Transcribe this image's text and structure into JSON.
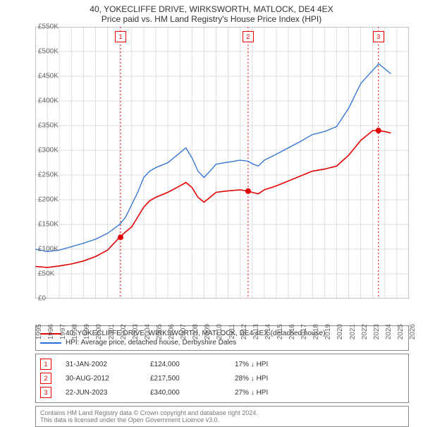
{
  "title": "40, YOKECLIFFE DRIVE, WIRKSWORTH, MATLOCK, DE4 4EX",
  "subtitle": "Price paid vs. HM Land Registry's House Price Index (HPI)",
  "chart": {
    "type": "line",
    "background_color": "#ffffff",
    "grid_color": "#dddddd",
    "axis_color": "#888888",
    "xlim": [
      1995,
      2026
    ],
    "xtick_step": 1,
    "ylim": [
      0,
      550000
    ],
    "ytick_step": 50000,
    "ylabels": [
      "£0",
      "£50K",
      "£100K",
      "£150K",
      "£200K",
      "£250K",
      "£300K",
      "£350K",
      "£400K",
      "£450K",
      "£500K",
      "£550K"
    ],
    "xlabels": [
      "1995",
      "1996",
      "1997",
      "1998",
      "1999",
      "2000",
      "2001",
      "2002",
      "2003",
      "2004",
      "2005",
      "2006",
      "2007",
      "2008",
      "2009",
      "2010",
      "2011",
      "2012",
      "2013",
      "2014",
      "2015",
      "2016",
      "2017",
      "2018",
      "2019",
      "2020",
      "2021",
      "2022",
      "2023",
      "2024",
      "2025",
      "2026"
    ],
    "series": [
      {
        "name": "40, YOKECLIFFE DRIVE, WIRKSWORTH, MATLOCK, DE4 4EX (detached house)",
        "color": "#e30000",
        "width": 1.6,
        "data": [
          [
            1995,
            65000
          ],
          [
            1996,
            63000
          ],
          [
            1997,
            66000
          ],
          [
            1998,
            70000
          ],
          [
            1999,
            76000
          ],
          [
            2000,
            85000
          ],
          [
            2001,
            98000
          ],
          [
            2002,
            124000
          ],
          [
            2002.5,
            135000
          ],
          [
            2003,
            145000
          ],
          [
            2003.5,
            165000
          ],
          [
            2004,
            185000
          ],
          [
            2004.5,
            198000
          ],
          [
            2005,
            205000
          ],
          [
            2006,
            215000
          ],
          [
            2007,
            228000
          ],
          [
            2007.5,
            235000
          ],
          [
            2008,
            225000
          ],
          [
            2008.5,
            205000
          ],
          [
            2009,
            195000
          ],
          [
            2009.5,
            205000
          ],
          [
            2010,
            215000
          ],
          [
            2011,
            218000
          ],
          [
            2012,
            220000
          ],
          [
            2012.66,
            217500
          ],
          [
            2013,
            215000
          ],
          [
            2013.5,
            212000
          ],
          [
            2014,
            220000
          ],
          [
            2015,
            228000
          ],
          [
            2016,
            238000
          ],
          [
            2017,
            248000
          ],
          [
            2018,
            258000
          ],
          [
            2019,
            262000
          ],
          [
            2020,
            268000
          ],
          [
            2021,
            290000
          ],
          [
            2022,
            320000
          ],
          [
            2023,
            340000
          ],
          [
            2023.47,
            340000
          ],
          [
            2024,
            338000
          ],
          [
            2024.5,
            335000
          ]
        ]
      },
      {
        "name": "HPI: Average price, detached house, Derbyshire Dales",
        "color": "#2a6fd6",
        "width": 1.3,
        "data": [
          [
            1995,
            100000
          ],
          [
            1996,
            95000
          ],
          [
            1997,
            98000
          ],
          [
            1998,
            105000
          ],
          [
            1999,
            112000
          ],
          [
            2000,
            120000
          ],
          [
            2001,
            132000
          ],
          [
            2002,
            150000
          ],
          [
            2002.5,
            165000
          ],
          [
            2003,
            190000
          ],
          [
            2003.5,
            215000
          ],
          [
            2004,
            245000
          ],
          [
            2004.5,
            258000
          ],
          [
            2005,
            265000
          ],
          [
            2006,
            275000
          ],
          [
            2007,
            295000
          ],
          [
            2007.5,
            305000
          ],
          [
            2008,
            285000
          ],
          [
            2008.5,
            258000
          ],
          [
            2009,
            245000
          ],
          [
            2009.5,
            258000
          ],
          [
            2010,
            272000
          ],
          [
            2011,
            276000
          ],
          [
            2012,
            280000
          ],
          [
            2012.66,
            278000
          ],
          [
            2013,
            273000
          ],
          [
            2013.5,
            268000
          ],
          [
            2014,
            280000
          ],
          [
            2015,
            292000
          ],
          [
            2016,
            305000
          ],
          [
            2017,
            318000
          ],
          [
            2018,
            332000
          ],
          [
            2019,
            338000
          ],
          [
            2020,
            348000
          ],
          [
            2021,
            385000
          ],
          [
            2022,
            435000
          ],
          [
            2023,
            462000
          ],
          [
            2023.5,
            475000
          ],
          [
            2024,
            465000
          ],
          [
            2024.5,
            455000
          ]
        ]
      }
    ],
    "events": [
      {
        "id": "1",
        "year": 2002.08,
        "date": "31-JAN-2002",
        "price": "£124,000",
        "pct": "17% ↓ HPI",
        "price_val": 124000
      },
      {
        "id": "2",
        "year": 2012.66,
        "date": "30-AUG-2012",
        "price": "£217,500",
        "pct": "28% ↓ HPI",
        "price_val": 217500
      },
      {
        "id": "3",
        "year": 2023.47,
        "date": "22-JUN-2023",
        "price": "£340,000",
        "pct": "27% ↓ HPI",
        "price_val": 340000
      }
    ],
    "event_line_color": "#e30000",
    "event_marker_fill": "#e30000"
  },
  "attribution": {
    "line1": "Contains HM Land Registry data © Crown copyright and database right 2024.",
    "line2": "This data is licensed under the Open Government Licence v3.0."
  }
}
